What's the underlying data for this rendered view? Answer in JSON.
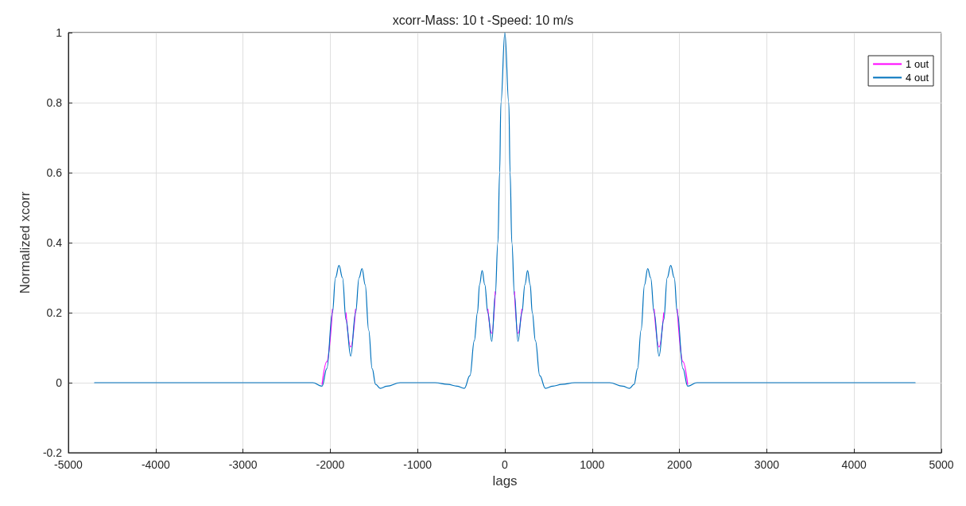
{
  "chart_data": {
    "type": "line",
    "title": "xcorr-Mass: 10 t -Speed: 10 m/s",
    "xlabel": "lags",
    "ylabel": "Normalized xcorr",
    "x": [
      -4700,
      -3500,
      -2900,
      -2500,
      -2200,
      -2094,
      -2040,
      -1975,
      -1940,
      -1900,
      -1860,
      -1820,
      -1766,
      -1710,
      -1670,
      -1636,
      -1600,
      -1560,
      -1520,
      -1480,
      -1427,
      -1350,
      -1200,
      -1000,
      -800,
      -650,
      -550,
      -464,
      -400,
      -350,
      -314,
      -290,
      -260,
      -230,
      -195,
      -150,
      -110,
      -80,
      -60,
      -45,
      0,
      45,
      60,
      80,
      110,
      150,
      195,
      230,
      260,
      290,
      314,
      350,
      400,
      464,
      550,
      650,
      800,
      1000,
      1200,
      1350,
      1427,
      1480,
      1520,
      1560,
      1600,
      1636,
      1670,
      1710,
      1766,
      1820,
      1860,
      1900,
      1940,
      1975,
      2040,
      2094,
      2200,
      2500,
      2900,
      3500,
      4700
    ],
    "series": [
      {
        "name": "1 out",
        "color": "#ff00ff",
        "values": [
          null,
          null,
          null,
          null,
          null,
          -0.005,
          0.06,
          0.21,
          null,
          null,
          null,
          0.2,
          0.102,
          0.21,
          null,
          null,
          null,
          null,
          null,
          null,
          null,
          null,
          null,
          null,
          null,
          null,
          null,
          null,
          null,
          null,
          null,
          null,
          null,
          null,
          0.21,
          0.141,
          0.26,
          null,
          null,
          null,
          null,
          null,
          null,
          null,
          0.26,
          0.141,
          0.21,
          null,
          null,
          null,
          null,
          null,
          null,
          null,
          null,
          null,
          null,
          null,
          null,
          null,
          null,
          null,
          null,
          null,
          null,
          null,
          null,
          0.21,
          0.102,
          0.2,
          null,
          null,
          null,
          0.21,
          0.06,
          -0.005,
          null,
          null,
          null,
          null,
          null
        ]
      },
      {
        "name": "4 out",
        "color": "#0072bd",
        "values": [
          0,
          0,
          0,
          0,
          0,
          -0.01,
          0.04,
          0.2,
          0.3,
          0.335,
          0.3,
          0.18,
          0.076,
          0.2,
          0.3,
          0.326,
          0.28,
          0.15,
          0.04,
          -0.005,
          -0.016,
          -0.01,
          0,
          0,
          0,
          -0.005,
          -0.01,
          -0.016,
          0.02,
          0.12,
          0.2,
          0.28,
          0.32,
          0.28,
          0.2,
          0.118,
          0.25,
          0.4,
          0.6,
          0.8,
          1,
          0.8,
          0.6,
          0.4,
          0.25,
          0.118,
          0.2,
          0.28,
          0.32,
          0.28,
          0.2,
          0.12,
          0.02,
          -0.016,
          -0.01,
          -0.005,
          0,
          0,
          0,
          -0.01,
          -0.016,
          -0.005,
          0.04,
          0.15,
          0.28,
          0.326,
          0.3,
          0.2,
          0.076,
          0.18,
          0.3,
          0.335,
          0.3,
          0.2,
          0.04,
          -0.01,
          0,
          0,
          0,
          0,
          0
        ]
      }
    ],
    "xlim": [
      -5000,
      5000
    ],
    "xticks": [
      -5000,
      -4000,
      -3000,
      -2000,
      -1000,
      0,
      1000,
      2000,
      3000,
      4000,
      5000
    ],
    "ylim": [
      -0.2,
      1
    ],
    "yticks": [
      -0.2,
      0,
      0.2,
      0.4,
      0.6,
      0.8,
      1
    ],
    "grid": true,
    "legend": "top right",
    "marker": "none",
    "line_style": "solid"
  }
}
